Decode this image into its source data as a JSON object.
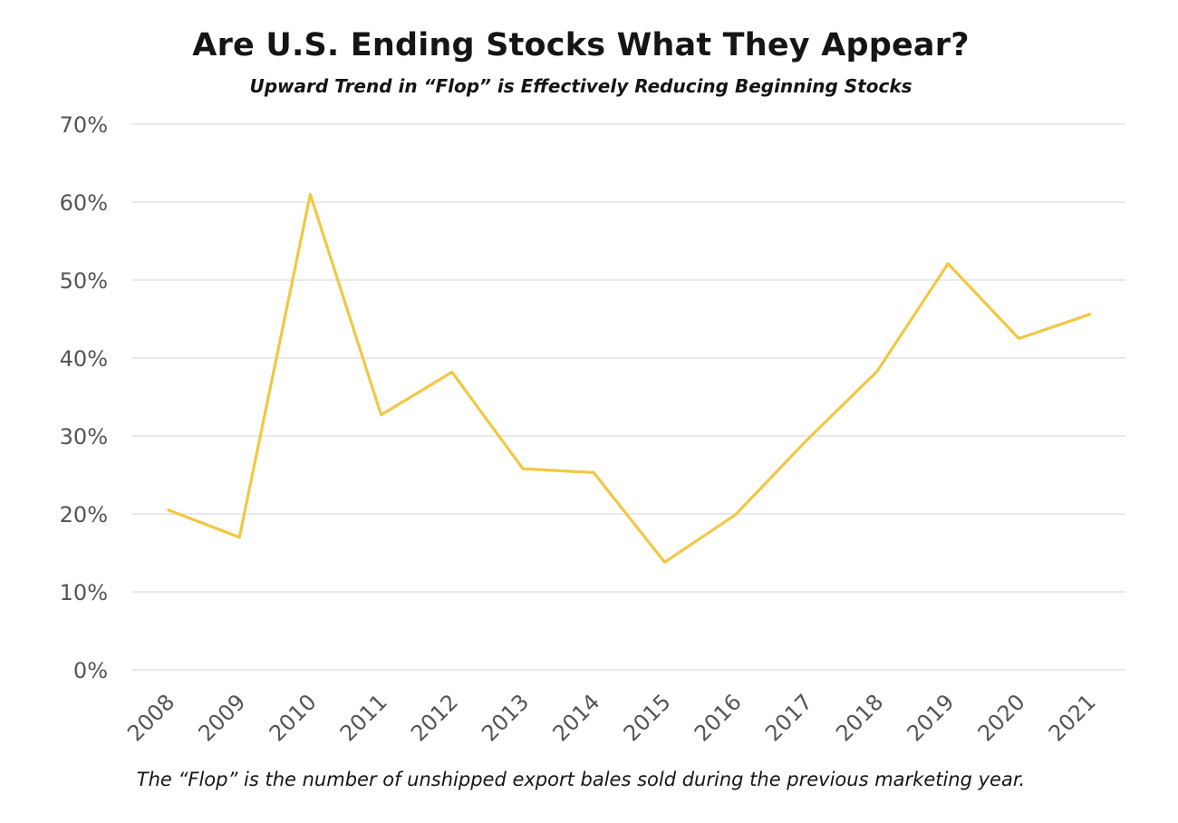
{
  "chart_data": {
    "type": "line",
    "title": "Are U.S. Ending Stocks What They Appear?",
    "subtitle": "Upward Trend in “Flop” is Effectively Reducing Beginning Stocks",
    "footnote": "The “Flop” is the number of unshipped export bales sold during the previous marketing year.",
    "xlabel": "",
    "ylabel": "",
    "ylim": [
      0,
      70
    ],
    "yticks": [
      "0%",
      "10%",
      "20%",
      "30%",
      "40%",
      "50%",
      "60%",
      "70%"
    ],
    "categories": [
      "2008",
      "2009",
      "2010",
      "2011",
      "2012",
      "2013",
      "2014",
      "2015",
      "2016",
      "2017",
      "2018",
      "2019",
      "2020",
      "2021"
    ],
    "series": [
      {
        "values": [
          20.5,
          17.0,
          61.0,
          32.7,
          38.2,
          25.8,
          25.3,
          13.8,
          19.9,
          29.4,
          38.3,
          52.1,
          42.5,
          45.6
        ],
        "color": "#F2C744"
      }
    ],
    "grid": true,
    "legend": "none"
  }
}
